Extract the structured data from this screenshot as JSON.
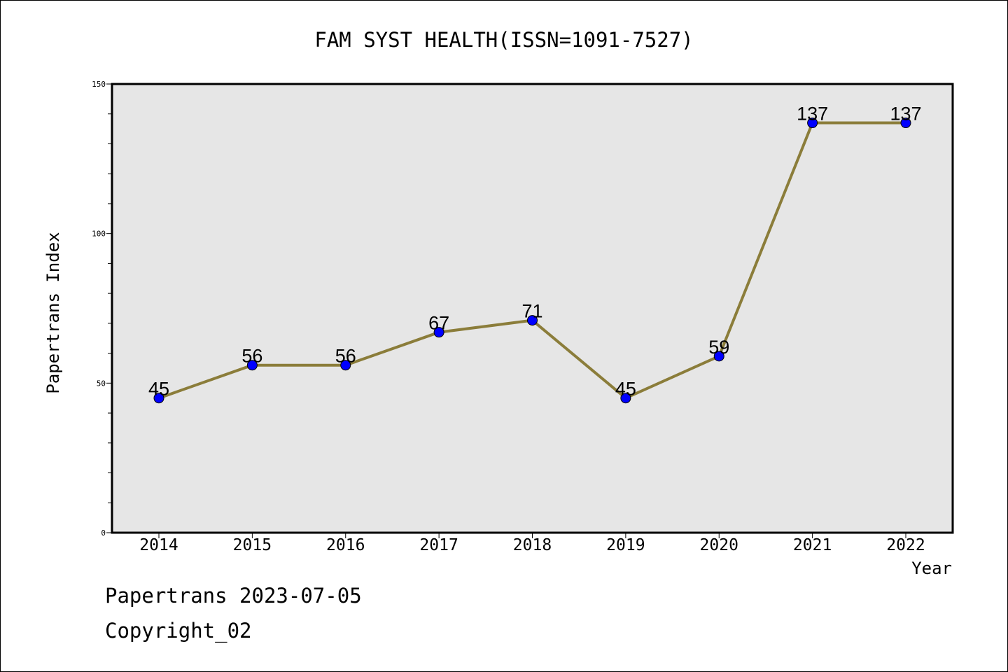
{
  "chart_data": {
    "type": "line",
    "title": "FAM SYST HEALTH(ISSN=1091-7527)",
    "xlabel": "Year",
    "ylabel": "Papertrans Index",
    "categories": [
      "2014",
      "2015",
      "2016",
      "2017",
      "2018",
      "2019",
      "2020",
      "2021",
      "2022"
    ],
    "series": [
      {
        "values": [
          45,
          56,
          56,
          67,
          71,
          45,
          59,
          137,
          137
        ]
      }
    ],
    "data_labels": [
      "45",
      "56",
      "56",
      "67",
      "71",
      "45",
      "59",
      "137",
      "137"
    ],
    "ylim": [
      0,
      150
    ],
    "yticks": [
      0,
      50,
      100,
      150
    ],
    "ytick_labels": [
      "0",
      "50",
      "100",
      "150"
    ],
    "grid": false,
    "colors": {
      "line": "#8b7d3a",
      "marker": "#0000ff",
      "plot_background": "#e6e6e6"
    }
  },
  "footer": {
    "line1": "Papertrans 2023-07-05",
    "line2": "Copyright_02"
  }
}
